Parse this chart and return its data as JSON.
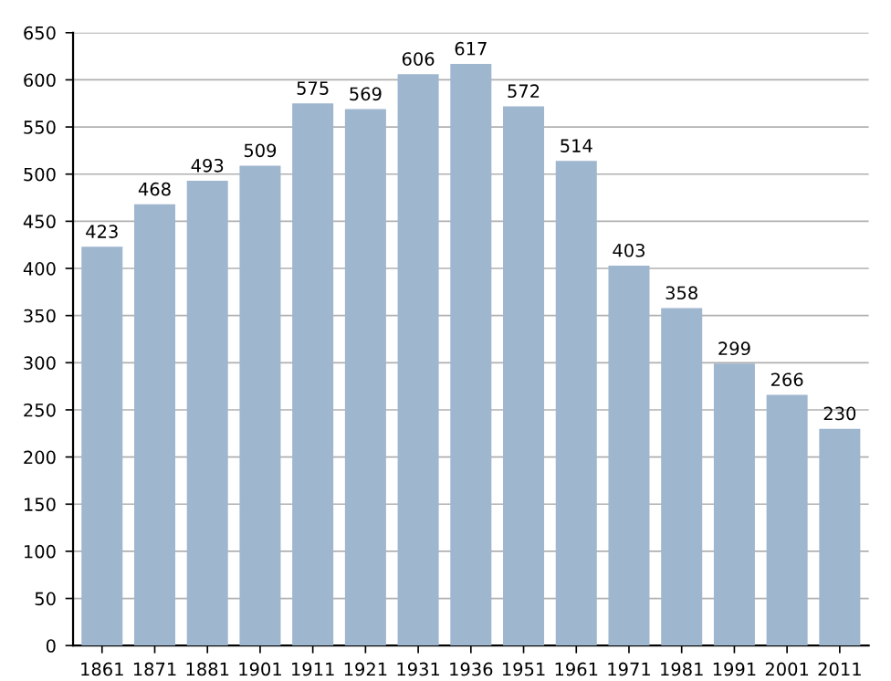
{
  "chart_data": {
    "type": "bar",
    "categories": [
      "1861",
      "1871",
      "1881",
      "1901",
      "1911",
      "1921",
      "1931",
      "1936",
      "1951",
      "1961",
      "1971",
      "1981",
      "1991",
      "2001",
      "2011"
    ],
    "values": [
      423,
      468,
      493,
      509,
      575,
      569,
      606,
      617,
      572,
      514,
      403,
      358,
      299,
      266,
      230
    ],
    "color": "#9fb6cf",
    "ylim": [
      0,
      650
    ],
    "yticks": [
      0,
      50,
      100,
      150,
      200,
      250,
      300,
      350,
      400,
      450,
      500,
      550,
      600,
      650
    ],
    "grid": "y",
    "data_labels": true
  }
}
